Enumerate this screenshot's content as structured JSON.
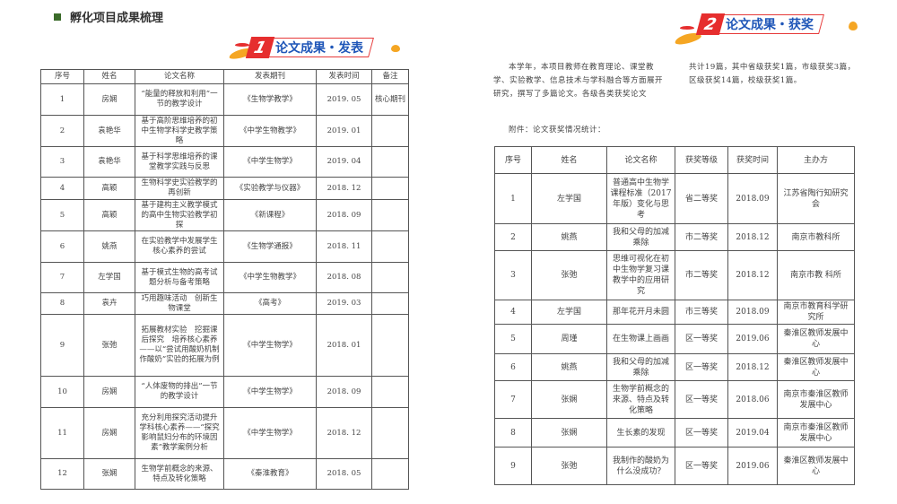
{
  "page_title": "孵化项目成果梳理",
  "banner1": {
    "num": "1",
    "text": "论文成果・发表"
  },
  "banner2": {
    "num": "2",
    "text": "论文成果・获奖"
  },
  "colors": {
    "title_square": "#3b6b2a",
    "banner_red": "#e62e2e",
    "banner_text": "#1f56b8",
    "splash_orange": "#f5a623"
  },
  "pub_table": {
    "headers": [
      "序号",
      "姓名",
      "论文名称",
      "发表期刊",
      "发表时间",
      "备注"
    ],
    "rows": [
      [
        "1",
        "房娴",
        "“能量的释放和利用”一节的教学设计",
        "《生物学教学》",
        "2019. 05",
        "核心期刊"
      ],
      [
        "2",
        "袁艳华",
        "基于高阶思维培养的初中生物学科学史教学策略",
        "《中学生物教学》",
        "2019. 01",
        ""
      ],
      [
        "3",
        "袁艳华",
        "基于科学思维培养的课堂教学实践与反思",
        "《中学生物学》",
        "2019. 04",
        ""
      ],
      [
        "4",
        "高颖",
        "生物科学史实验教学的再创新",
        "《实验教学与仪器》",
        "2018. 12",
        ""
      ],
      [
        "5",
        "高颖",
        "基于建构主义教学模式的高中生物实验教学初探",
        "《新课程》",
        "2018. 09",
        ""
      ],
      [
        "6",
        "姚燕",
        "在实验教学中发展学生核心素养的尝试",
        "《生物学通报》",
        "2018. 11",
        ""
      ],
      [
        "7",
        "左学国",
        "基于模式生物的高考试题分析与备考策略",
        "《中学生物教学》",
        "2018. 08",
        ""
      ],
      [
        "8",
        "袁卉",
        "巧用趣味活动　创新生物课堂",
        "《高考》",
        "2019. 03",
        ""
      ],
      [
        "9",
        "张弛",
        "拓展教材实验　挖掘课后探究　培养核心素养　——以“尝试用酸奶机制作酸奶”实验的拓展为例",
        "《中学生物学》",
        "2018. 01",
        ""
      ],
      [
        "10",
        "房娴",
        "“人体废物的排出”一节的教学设计",
        "《中学生物学》",
        "2018. 09",
        ""
      ],
      [
        "11",
        "房娴",
        "充分利用探究活动提升学科核心素养——“探究影响鼠妇分布的环境因素”教学案例分析",
        "《中学生物学》",
        "2018. 12",
        ""
      ],
      [
        "12",
        "张娴",
        "生物学前概念的来源、特点及转化策略",
        "《秦淮教育》",
        "2018. 05",
        ""
      ]
    ]
  },
  "intro": {
    "left": "本学年，本项目教师在教育理论、课堂教学、实验教学、信息技术与学科融合等方面展开研究，撰写了多篇论文。各级各类获奖论文",
    "right": "共计19篇，其中省级获奖1篇，市级获奖3篇，区级获奖14篇，校级获奖1篇。",
    "attachment": "附件：论文获奖情况统计："
  },
  "award_table": {
    "headers": [
      "序号",
      "姓名",
      "论文名称",
      "获奖等级",
      "获奖时间",
      "主办方"
    ],
    "rows": [
      [
        "1",
        "左学国",
        "普通高中生物学课程标准（2017 年版）变化与思考",
        "省二等奖",
        "2018.09",
        "江苏省陶行知研究会"
      ],
      [
        "2",
        "姚燕",
        "我和父母的加减乘除",
        "市二等奖",
        "2018.12",
        "南京市教科所"
      ],
      [
        "3",
        "张弛",
        "思维可视化在初中生物学复习课教学中的应用研究",
        "市二等奖",
        "2018.12",
        "南京市教 科所"
      ],
      [
        "4",
        "左学国",
        "那年花开月未圆",
        "市三等奖",
        "2018.09",
        "南京市教育科学研究所"
      ],
      [
        "5",
        "周瑾",
        "在生物课上画画",
        "区一等奖",
        "2019.06",
        "秦淮区教师发展中心"
      ],
      [
        "6",
        "姚燕",
        "我和父母的加减乘除",
        "区一等奖",
        "2018.12",
        "秦淮区教师发展中心"
      ],
      [
        "7",
        "张娴",
        "生物学前概念的来源、特点及转化策略",
        "区一等奖",
        "2018.06",
        "南京市秦淮区教师发展中心"
      ],
      [
        "8",
        "张娴",
        "生长素的发现",
        "区一等奖",
        "2019.04",
        "南京市秦淮区教师发展中心"
      ],
      [
        "9",
        "张弛",
        "我制作的酸奶为什么没成功？",
        "区一等奖",
        "2019.06",
        "秦淮区教师发展中心"
      ]
    ]
  }
}
